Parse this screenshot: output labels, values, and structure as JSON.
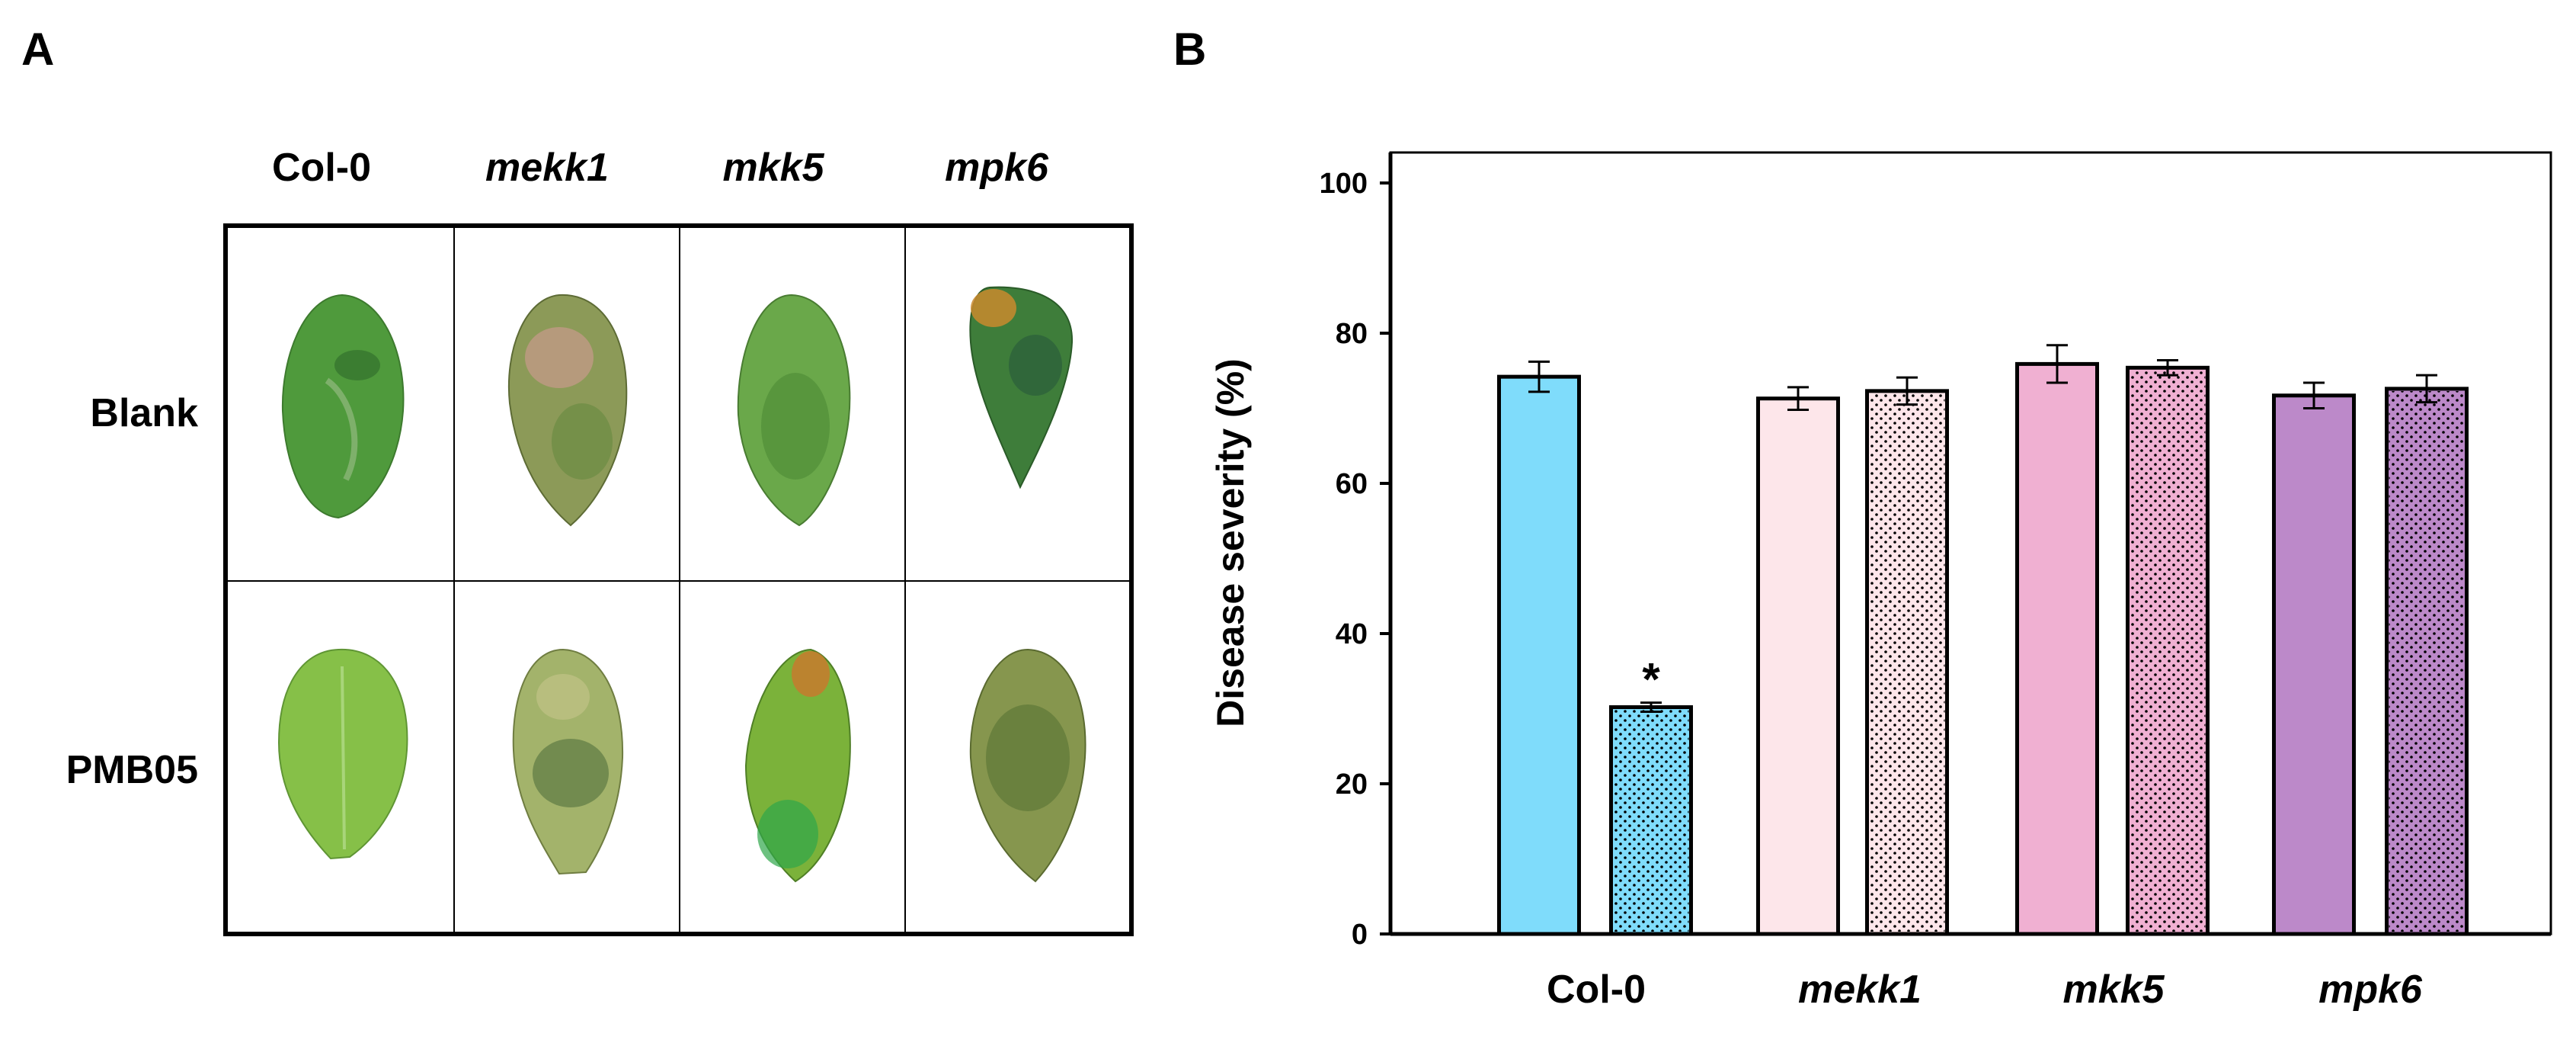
{
  "panel_a": {
    "letter": "A",
    "columns": [
      "Col-0",
      "mekk1",
      "mkk5",
      "mpk6"
    ],
    "rows": [
      "Blank",
      "PMB05"
    ]
  },
  "panel_b": {
    "letter": "B"
  },
  "colors": {
    "col0": "#7fdcfb",
    "mekk1": "#fde6ea",
    "mkk5": "#f0b0d2",
    "mpk6": "#bc89c9"
  },
  "chart_data": {
    "type": "bar",
    "title": "",
    "xlabel": "",
    "ylabel": "Disease severity (%)",
    "ylim": [
      0,
      100
    ],
    "yticks": [
      0,
      20,
      40,
      60,
      80,
      100
    ],
    "categories": [
      "Col-0",
      "mekk1",
      "mkk5",
      "mpk6"
    ],
    "series": [
      {
        "name": "Blank",
        "pattern": "solid",
        "values": [
          74.2,
          71.3,
          75.9,
          71.7
        ],
        "errors": [
          2.0,
          1.5,
          2.5,
          1.7
        ]
      },
      {
        "name": "PMB05",
        "pattern": "dotted",
        "values": [
          30.2,
          72.3,
          75.4,
          72.6
        ],
        "errors": [
          0.6,
          1.8,
          1.0,
          1.8
        ]
      }
    ],
    "annotations": [
      {
        "category": "Col-0",
        "series": "PMB05",
        "text": "*"
      }
    ]
  }
}
